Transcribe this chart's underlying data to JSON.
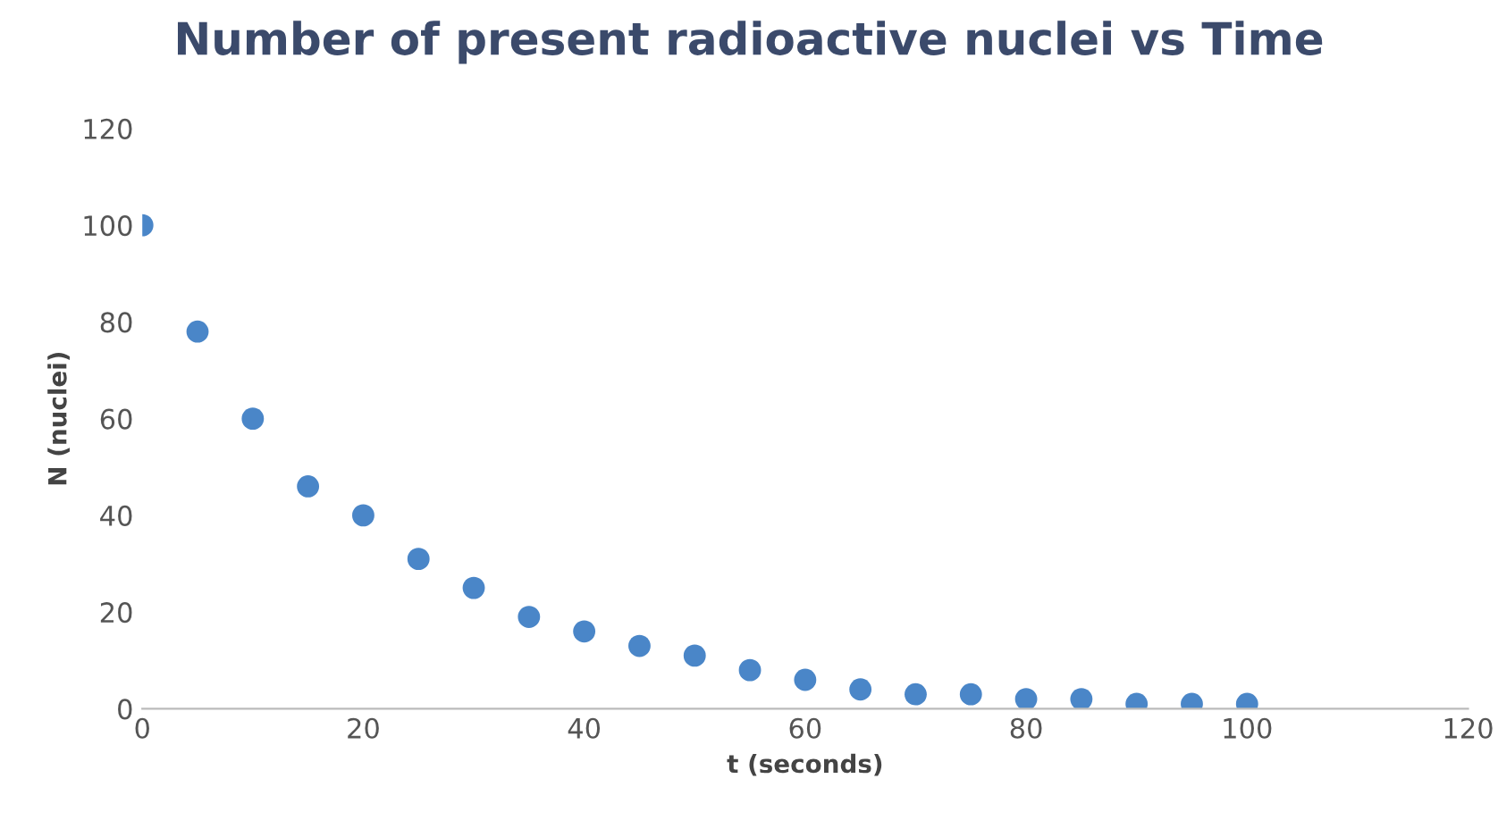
{
  "chart_data": {
    "type": "scatter",
    "title": "Number of present radioactive nuclei vs Time",
    "xlabel": "t (seconds)",
    "ylabel": "N (nuclei)",
    "x": [
      0,
      5,
      10,
      15,
      20,
      25,
      30,
      35,
      40,
      45,
      50,
      55,
      60,
      65,
      70,
      75,
      80,
      85,
      90,
      95,
      100
    ],
    "series": [
      {
        "color": "#4a86c8",
        "values": [
          100,
          78,
          60,
          46,
          40,
          31,
          25,
          19,
          16,
          13,
          11,
          8,
          6,
          4,
          3,
          3,
          2,
          2,
          1,
          1,
          1
        ]
      }
    ],
    "xlim": [
      0,
      120
    ],
    "xticks": [
      0,
      20,
      40,
      60,
      80,
      100,
      120
    ],
    "ylim": [
      0,
      120
    ],
    "yticks": [
      0,
      20,
      40,
      60,
      80,
      100,
      120
    ],
    "grid": false,
    "legend": false,
    "marker": "circle"
  }
}
